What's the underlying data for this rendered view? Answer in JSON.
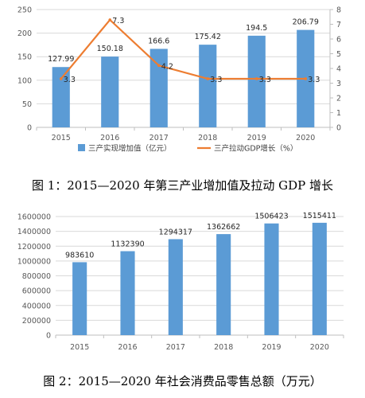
{
  "chart_data": [
    {
      "type": "bar+line",
      "categories": [
        "2015",
        "2016",
        "2017",
        "2018",
        "2019",
        "2020"
      ],
      "series": [
        {
          "name": "三产实现增加值（亿元）",
          "type": "bar",
          "axis": "left",
          "color": "#5b9bd5",
          "values": [
            127.99,
            150.18,
            166.6,
            175.42,
            194.5,
            206.79
          ]
        },
        {
          "name": "三产拉动GDP增长（%）",
          "type": "line",
          "axis": "right",
          "color": "#ed7d31",
          "values": [
            3.3,
            7.3,
            4.2,
            3.3,
            3.3,
            3.3
          ]
        }
      ],
      "left_axis": {
        "ylim": [
          0,
          250
        ],
        "ticks": [
          0,
          50,
          100,
          150,
          200,
          250
        ]
      },
      "right_axis": {
        "ylim": [
          0,
          8
        ],
        "ticks": [
          0,
          1,
          2,
          3,
          4,
          5,
          6,
          7,
          8
        ]
      },
      "grid": true,
      "legend": "bottom",
      "caption": "图 1：2015—2020 年第三产业增加值及拉动 GDP 增长"
    },
    {
      "type": "bar",
      "categories": [
        "2015",
        "2016",
        "2017",
        "2018",
        "2019",
        "2020"
      ],
      "values": [
        983610,
        1132390,
        1294317,
        1362662,
        1506423,
        1515411
      ],
      "color": "#5b9bd5",
      "ylim": [
        0,
        1600000
      ],
      "ticks": [
        0,
        200000,
        400000,
        600000,
        800000,
        1000000,
        1200000,
        1400000,
        1600000
      ],
      "grid": true,
      "caption": "图 2：2015—2020 年社会消费品零售总额（万元）"
    }
  ]
}
